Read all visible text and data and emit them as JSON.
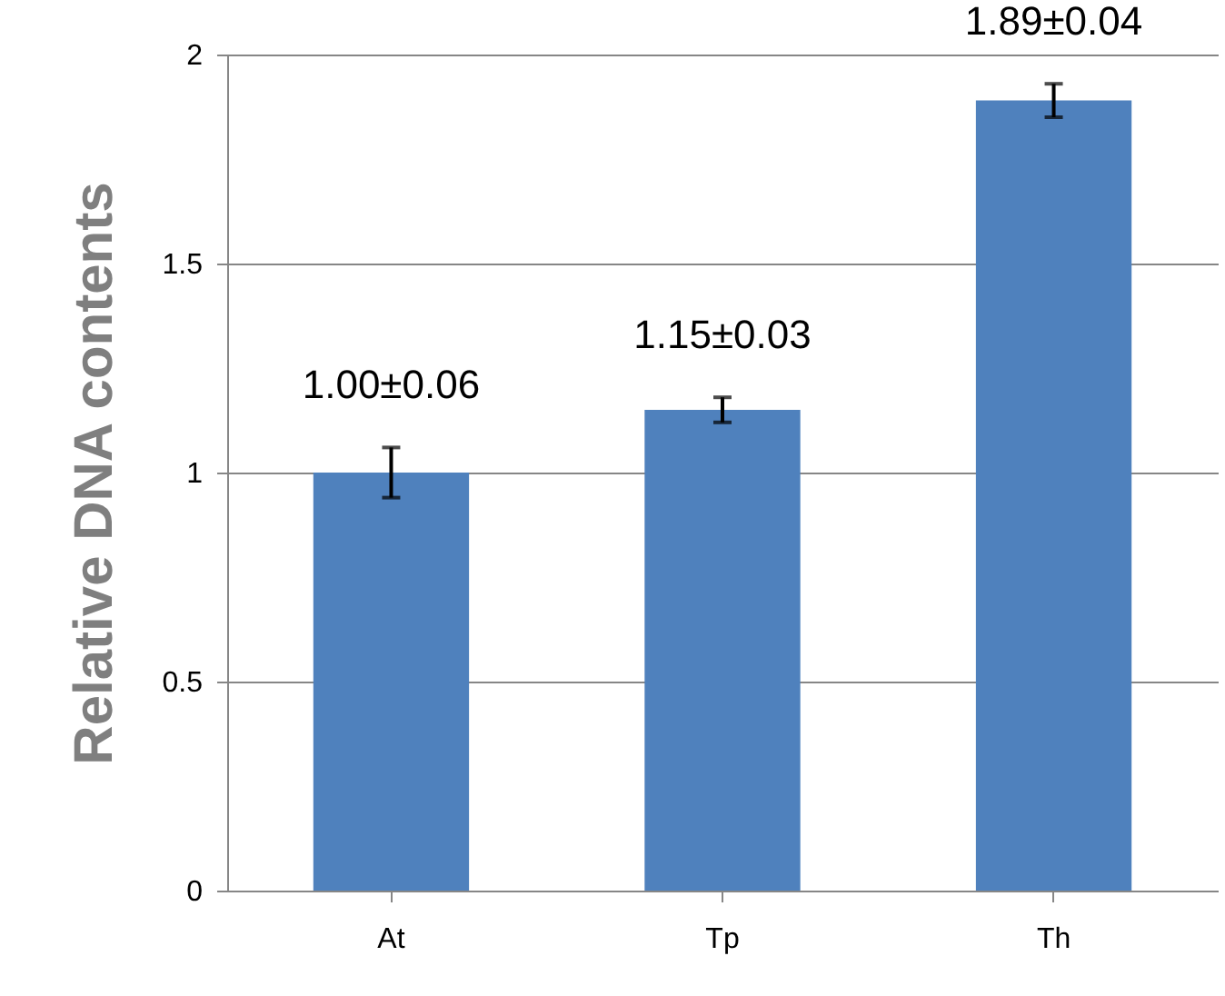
{
  "chart_data": {
    "type": "bar",
    "ylabel": "Relative DNA contents",
    "categories": [
      "At",
      "Tp",
      "Th"
    ],
    "values": [
      1.0,
      1.15,
      1.89
    ],
    "errors": [
      0.06,
      0.03,
      0.04
    ],
    "value_labels": [
      "1.00±0.06",
      "1.15±0.03",
      "1.89±0.04"
    ],
    "color": "#4f81bd",
    "ylim": [
      0,
      2
    ],
    "yticks": [
      0,
      0.5,
      1,
      1.5,
      2
    ],
    "grid": "y"
  }
}
